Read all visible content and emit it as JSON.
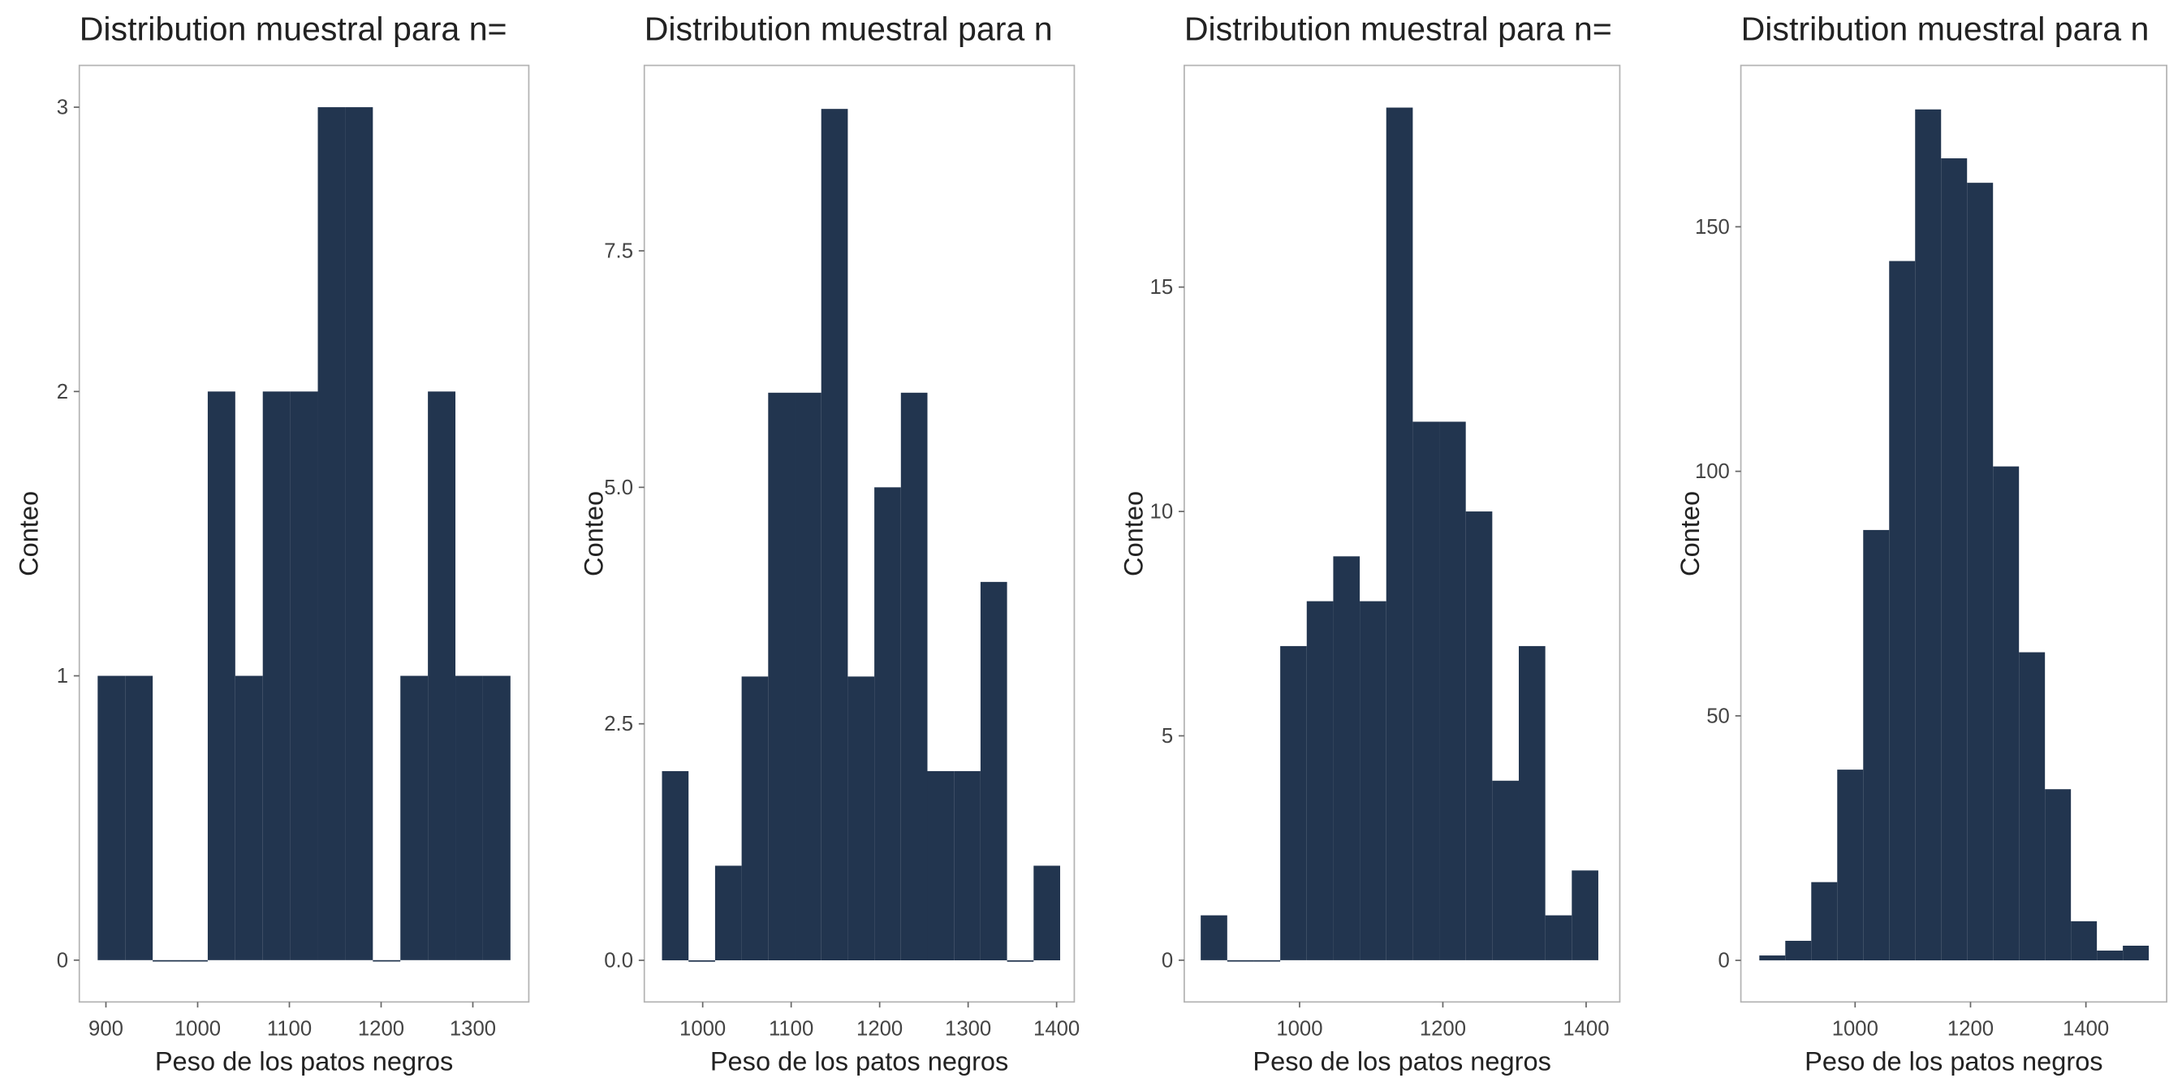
{
  "chart_data": [
    {
      "type": "histogram",
      "title": "Distribution muestral para n=",
      "xlabel": "Peso de los patos negros",
      "ylabel": "Conteo",
      "color": "#22354f",
      "bins": [
        891,
        921,
        951,
        981,
        1011,
        1041,
        1071,
        1101,
        1131,
        1161,
        1191,
        1221,
        1251,
        1281,
        1311,
        1341
      ],
      "counts": [
        1,
        1,
        0,
        0,
        2,
        1,
        2,
        2,
        3,
        3,
        0,
        1,
        2,
        1,
        1
      ],
      "xlim": [
        871,
        1361
      ],
      "ylim": [
        -0.147,
        3.147
      ],
      "xticks": [
        900,
        1000,
        1100,
        1200,
        1300
      ],
      "yticks": [
        0,
        1,
        2,
        3
      ]
    },
    {
      "type": "histogram",
      "title": "Distribution muestral para n",
      "xlabel": "Peso de los patos negros",
      "ylabel": "Conteo",
      "color": "#22354f",
      "bins": [
        954,
        984,
        1014,
        1044,
        1074,
        1104,
        1134,
        1164,
        1194,
        1224,
        1254,
        1284,
        1314,
        1344,
        1374,
        1404
      ],
      "counts": [
        2,
        0,
        1,
        3,
        6,
        6,
        9,
        3,
        5,
        6,
        2,
        2,
        4,
        0,
        1
      ],
      "xlim": [
        934,
        1420
      ],
      "ylim": [
        -0.44,
        9.46
      ],
      "xticks": [
        1000,
        1100,
        1200,
        1300,
        1400
      ],
      "yticks": [
        {
          "value": 0,
          "label": "0.0"
        },
        2.5,
        {
          "value": 5,
          "label": "5.0"
        },
        7.5
      ]
    },
    {
      "type": "histogram",
      "title": "Distribution muestral para n=",
      "xlabel": "Peso de los patos negros",
      "ylabel": "Conteo",
      "color": "#22354f",
      "bins": [
        862,
        899,
        936,
        973,
        1010,
        1047,
        1084,
        1121,
        1158,
        1195,
        1232,
        1269,
        1306,
        1343,
        1380,
        1417
      ],
      "counts": [
        1,
        0,
        0,
        7,
        8,
        9,
        8,
        19,
        12,
        12,
        10,
        4,
        7,
        1,
        2
      ],
      "xlim": [
        839,
        1447
      ],
      "ylim": [
        -0.93,
        19.94
      ],
      "xticks": [
        1000,
        1200,
        1400
      ],
      "yticks": [
        0,
        5,
        10,
        15
      ]
    },
    {
      "type": "histogram",
      "title": "Distribution muestral para n",
      "xlabel": "Peso de los patos negros",
      "ylabel": "Conteo",
      "color": "#22354f",
      "bins": [
        834,
        879,
        924,
        969,
        1014,
        1059,
        1104,
        1149,
        1194,
        1239,
        1284,
        1329,
        1374,
        1419,
        1464,
        1509
      ],
      "counts": [
        1,
        4,
        16,
        39,
        88,
        143,
        174,
        164,
        159,
        101,
        63,
        35,
        8,
        2,
        3
      ],
      "xlim": [
        802,
        1540
      ],
      "ylim": [
        -8.5,
        183
      ],
      "xticks": [
        1000,
        1200,
        1400
      ],
      "yticks": [
        0,
        50,
        100,
        150
      ]
    }
  ]
}
